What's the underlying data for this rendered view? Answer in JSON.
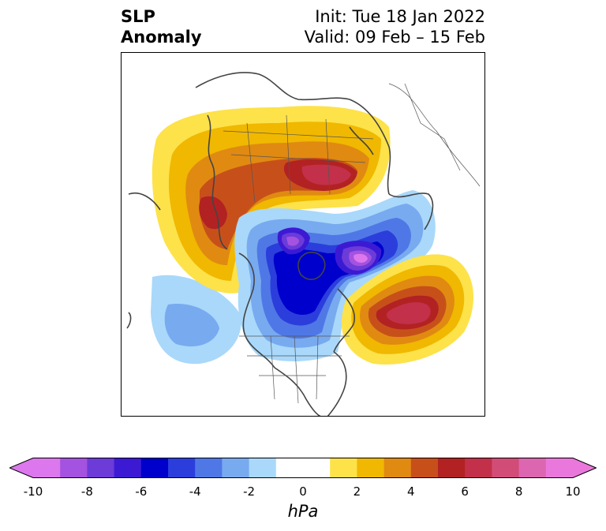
{
  "header": {
    "title_line1": "SLP",
    "title_line2": "Anomaly",
    "init": "Init: Tue 18 Jan 2022",
    "valid": "Valid: 09 Feb – 15 Feb"
  },
  "map": {
    "projection": "north-polar-stereographic",
    "variable": "sea level pressure anomaly",
    "features": [
      {
        "name": "alaska-low",
        "sign": "negative",
        "peak_hpa": -10
      },
      {
        "name": "greenland-arctic-low",
        "sign": "negative",
        "peak_hpa": -8
      },
      {
        "name": "north-pacific-weak-low",
        "sign": "negative",
        "peak_hpa": -3
      },
      {
        "name": "russia-siberia-high",
        "sign": "positive",
        "peak_hpa": 8
      },
      {
        "name": "east-asia-high",
        "sign": "positive",
        "peak_hpa": 7
      },
      {
        "name": "north-atlantic-high",
        "sign": "positive",
        "peak_hpa": 8
      }
    ]
  },
  "colorbar": {
    "unit": "hPa",
    "ticks": [
      "-10",
      "-8",
      "-6",
      "-4",
      "-2",
      "0",
      "2",
      "4",
      "6",
      "8",
      "10"
    ],
    "colors": [
      "#dd77ee",
      "#a452e0",
      "#6c3bd8",
      "#3c1ad4",
      "#0000cc",
      "#2b3edc",
      "#4f78e6",
      "#78aaf0",
      "#a9d8fa",
      "#ffffff",
      "#ffffff",
      "#fde24a",
      "#f0b800",
      "#e08a12",
      "#c7501a",
      "#b22222",
      "#c3304a",
      "#d24c78",
      "#dc66b0",
      "#ea78dc"
    ]
  }
}
